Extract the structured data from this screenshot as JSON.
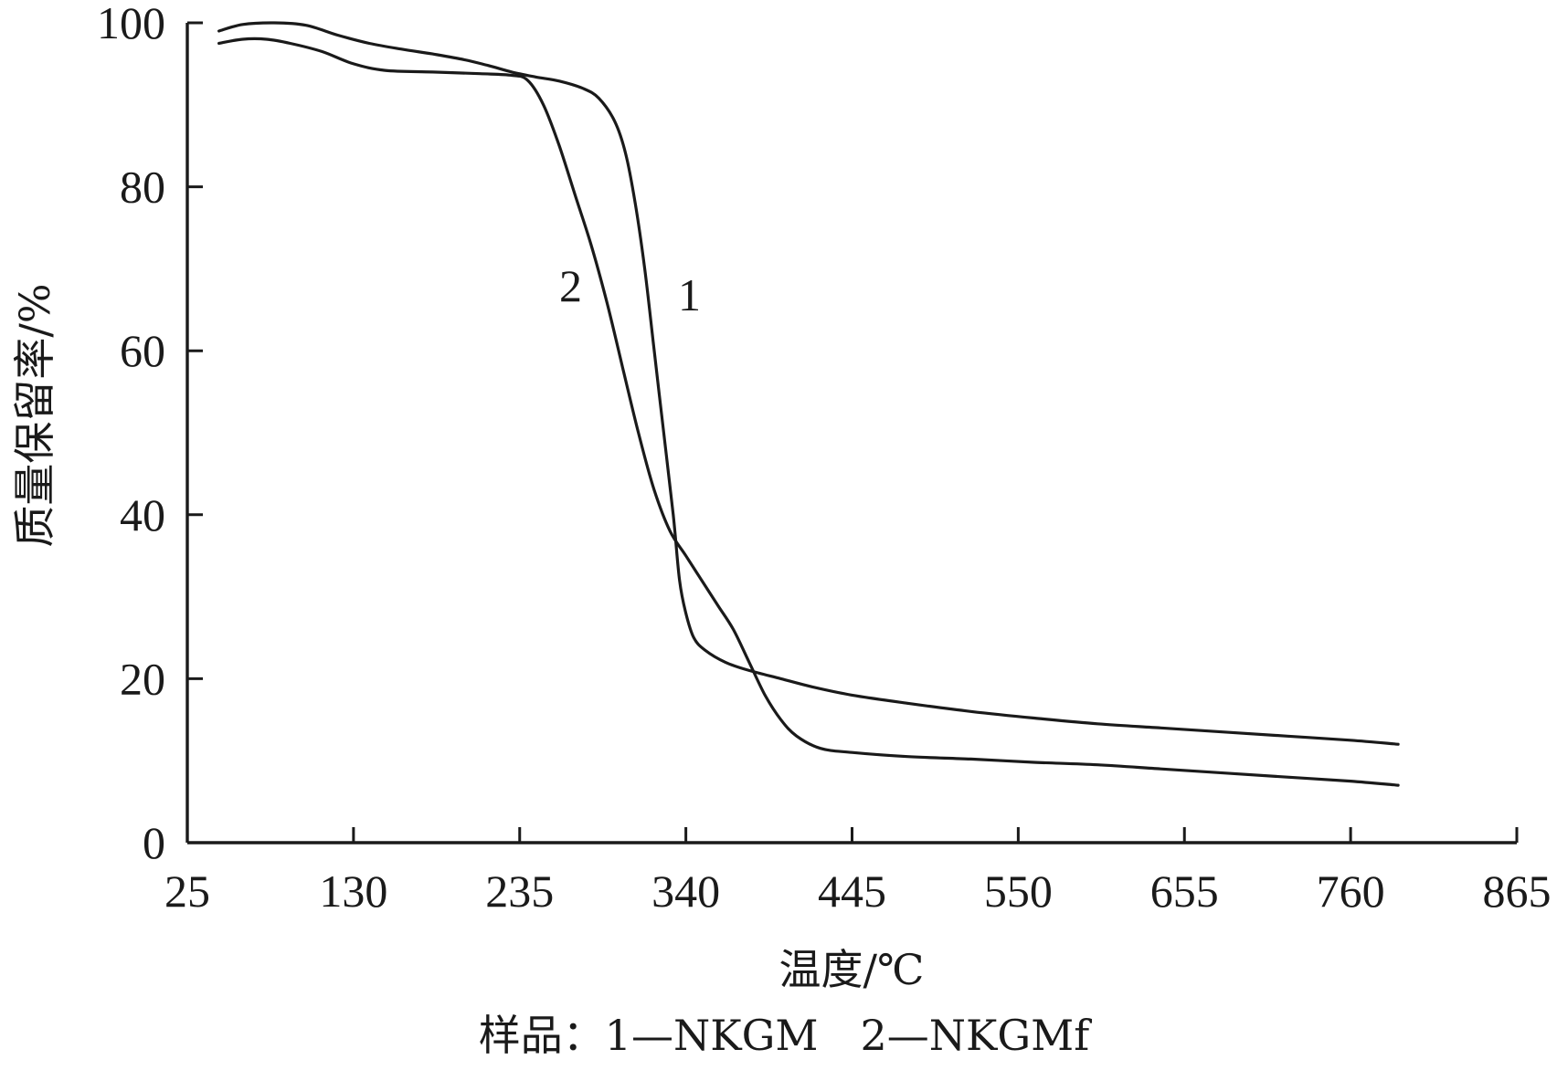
{
  "chart_data": {
    "type": "line",
    "title": "",
    "xlabel": "温度/℃",
    "ylabel": "质量保留率/%",
    "caption": "样品：1—NKGM　2—NKGMf",
    "xlim": [
      25,
      865
    ],
    "ylim": [
      0,
      100
    ],
    "x_ticks": [
      "25",
      "130",
      "235",
      "340",
      "445",
      "550",
      "655",
      "760",
      "865"
    ],
    "y_ticks": [
      "0",
      "20",
      "40",
      "60",
      "80",
      "100"
    ],
    "grid": false,
    "series": [
      {
        "name": "1",
        "points": [
          [
            45,
            99
          ],
          [
            60,
            99.8
          ],
          [
            80,
            100
          ],
          [
            100,
            99.7
          ],
          [
            120,
            98.5
          ],
          [
            140,
            97.5
          ],
          [
            160,
            96.8
          ],
          [
            180,
            96.2
          ],
          [
            200,
            95.5
          ],
          [
            215,
            94.8
          ],
          [
            230,
            94
          ],
          [
            245,
            93.4
          ],
          [
            260,
            92.9
          ],
          [
            275,
            92
          ],
          [
            285,
            90.8
          ],
          [
            295,
            88
          ],
          [
            302,
            84
          ],
          [
            308,
            78
          ],
          [
            314,
            70
          ],
          [
            320,
            60
          ],
          [
            326,
            50
          ],
          [
            332,
            40
          ],
          [
            336,
            32
          ],
          [
            340,
            28
          ],
          [
            345,
            25
          ],
          [
            352,
            23.5
          ],
          [
            365,
            22
          ],
          [
            380,
            21
          ],
          [
            400,
            20
          ],
          [
            420,
            19
          ],
          [
            445,
            18
          ],
          [
            480,
            17
          ],
          [
            520,
            16
          ],
          [
            560,
            15.2
          ],
          [
            600,
            14.5
          ],
          [
            640,
            14
          ],
          [
            680,
            13.5
          ],
          [
            720,
            13
          ],
          [
            760,
            12.5
          ],
          [
            790,
            12
          ]
        ]
      },
      {
        "name": "2",
        "points": [
          [
            45,
            97.5
          ],
          [
            60,
            98
          ],
          [
            75,
            98
          ],
          [
            90,
            97.5
          ],
          [
            110,
            96.5
          ],
          [
            130,
            95
          ],
          [
            150,
            94.2
          ],
          [
            180,
            94
          ],
          [
            210,
            93.8
          ],
          [
            230,
            93.6
          ],
          [
            240,
            93
          ],
          [
            250,
            90
          ],
          [
            260,
            85
          ],
          [
            270,
            79
          ],
          [
            280,
            73
          ],
          [
            290,
            66
          ],
          [
            300,
            58
          ],
          [
            310,
            50
          ],
          [
            320,
            43
          ],
          [
            330,
            38
          ],
          [
            340,
            35
          ],
          [
            350,
            32
          ],
          [
            360,
            29
          ],
          [
            370,
            26
          ],
          [
            380,
            22
          ],
          [
            390,
            18
          ],
          [
            400,
            15
          ],
          [
            410,
            13
          ],
          [
            425,
            11.5
          ],
          [
            445,
            11
          ],
          [
            480,
            10.5
          ],
          [
            520,
            10.2
          ],
          [
            560,
            9.8
          ],
          [
            600,
            9.5
          ],
          [
            640,
            9
          ],
          [
            680,
            8.5
          ],
          [
            720,
            8
          ],
          [
            760,
            7.5
          ],
          [
            790,
            7
          ]
        ]
      }
    ]
  }
}
